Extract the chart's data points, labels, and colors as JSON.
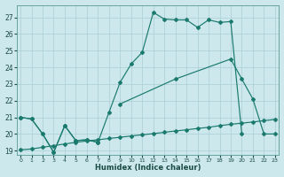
{
  "xlabel": "Humidex (Indice chaleur)",
  "bg_color": "#cce8ec",
  "grid_color": "#aaced4",
  "line_color": "#1a7a6e",
  "xlim": [
    -0.3,
    23.3
  ],
  "ylim": [
    18.75,
    27.75
  ],
  "yticks": [
    19,
    20,
    21,
    22,
    23,
    24,
    25,
    26,
    27
  ],
  "xticks": [
    0,
    1,
    2,
    3,
    4,
    5,
    6,
    7,
    8,
    9,
    10,
    11,
    12,
    13,
    14,
    15,
    16,
    17,
    18,
    19,
    20,
    21,
    22,
    23
  ],
  "line_zigzag_x": [
    0,
    1,
    2,
    3,
    4,
    5,
    6,
    7
  ],
  "line_zigzag_y": [
    21.0,
    20.9,
    20.0,
    18.9,
    20.5,
    19.6,
    19.65,
    19.5
  ],
  "line_upper_x": [
    0,
    1,
    2,
    3,
    4,
    5,
    6,
    7,
    8,
    9,
    10,
    11,
    12,
    13,
    14,
    15,
    16,
    17,
    18,
    19,
    20
  ],
  "line_upper_y": [
    21.0,
    20.9,
    20.0,
    18.9,
    20.5,
    19.6,
    19.65,
    19.5,
    21.3,
    23.1,
    24.2,
    24.9,
    27.3,
    26.9,
    26.85,
    26.85,
    26.4,
    26.85,
    26.7,
    26.75,
    20.0
  ],
  "line_triangle_x": [
    9,
    14,
    19,
    20,
    21,
    22,
    23
  ],
  "line_triangle_y": [
    21.8,
    23.3,
    24.5,
    23.3,
    22.1,
    20.0,
    20.0
  ],
  "line_low_x": [
    0,
    1,
    2,
    3,
    4,
    5,
    6,
    7,
    8,
    9,
    10,
    11,
    12,
    13,
    14,
    15,
    16,
    17,
    18,
    19,
    20,
    21,
    22,
    23
  ],
  "line_low_y": [
    19.05,
    19.1,
    19.2,
    19.3,
    19.4,
    19.5,
    19.58,
    19.65,
    19.73,
    19.8,
    19.88,
    19.95,
    20.02,
    20.1,
    20.18,
    20.25,
    20.33,
    20.4,
    20.5,
    20.58,
    20.65,
    20.72,
    20.8,
    20.87
  ]
}
